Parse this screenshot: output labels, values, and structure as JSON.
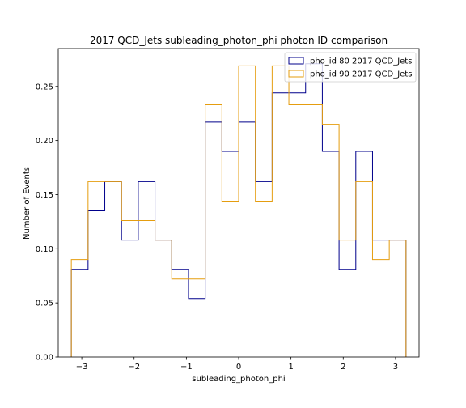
{
  "chart_data": {
    "type": "step-histogram",
    "title": "2017 QCD_Jets subleading_photon_phi photon ID comparison",
    "xlabel": "subleading_photon_phi",
    "ylabel": "Number of Events",
    "xlim": [
      -3.45,
      3.45
    ],
    "ylim": [
      0,
      0.285
    ],
    "xticks": [
      -3,
      -2,
      -1,
      0,
      1,
      2,
      3
    ],
    "xtick_labels": [
      "−3",
      "−2",
      "−1",
      "0",
      "1",
      "2",
      "3"
    ],
    "yticks": [
      0.0,
      0.05,
      0.1,
      0.15,
      0.2,
      0.25
    ],
    "ytick_labels": [
      "0.00",
      "0.05",
      "0.10",
      "0.15",
      "0.20",
      "0.25"
    ],
    "bin_edges": [
      -3.2,
      -2.88,
      -2.56,
      -2.24,
      -1.92,
      -1.6,
      -1.28,
      -0.96,
      -0.64,
      -0.32,
      0.0,
      0.32,
      0.64,
      0.96,
      1.28,
      1.6,
      1.92,
      2.24,
      2.56,
      2.88,
      3.2
    ],
    "series": [
      {
        "name": "pho_id 80 2017 QCD_Jets",
        "color": "#00008b",
        "values": [
          0.081,
          0.135,
          0.162,
          0.108,
          0.162,
          0.108,
          0.081,
          0.054,
          0.217,
          0.19,
          0.217,
          0.162,
          0.244,
          0.244,
          0.271,
          0.19,
          0.081,
          0.19,
          0.108,
          0.108
        ]
      },
      {
        "name": "pho_id 90 2017 QCD_Jets",
        "color": "#e59d0f",
        "values": [
          0.09,
          0.162,
          0.162,
          0.126,
          0.126,
          0.108,
          0.072,
          0.072,
          0.233,
          0.144,
          0.269,
          0.144,
          0.269,
          0.233,
          0.233,
          0.215,
          0.108,
          0.162,
          0.09,
          0.108
        ]
      }
    ],
    "legend_position": "top-right",
    "grid": false
  }
}
